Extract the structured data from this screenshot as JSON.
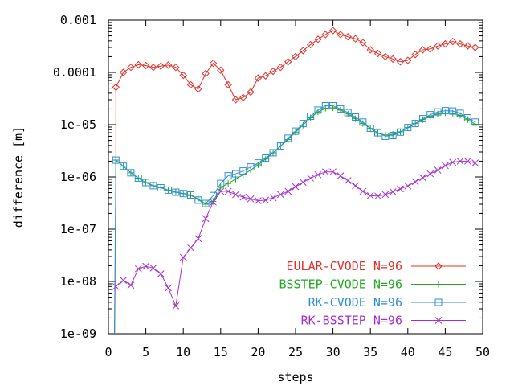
{
  "chart_data": {
    "type": "line",
    "title": "",
    "xlabel": "steps",
    "ylabel": "difference [m]",
    "xlim": [
      0,
      50
    ],
    "ylim": [
      1e-09,
      0.001
    ],
    "yscale": "log",
    "xticks": [
      0,
      5,
      10,
      15,
      20,
      25,
      30,
      35,
      40,
      45,
      50
    ],
    "xtick_labels": [
      "0",
      "5",
      "10",
      "15",
      "20",
      "25",
      "30",
      "35",
      "40",
      "45",
      "50"
    ],
    "yticks": [
      1e-09,
      1e-08,
      1e-07,
      1e-06,
      1e-05,
      0.0001,
      0.001
    ],
    "ytick_labels": [
      "1e-09",
      "1e-08",
      "1e-07",
      "1e-06",
      "1e-05",
      "0.0001",
      "0.001"
    ],
    "grid": false,
    "legend_position": "bottom-right",
    "series": [
      {
        "name": "EULAR-CVODE N=96",
        "color": "#e0302a",
        "marker": "diamond",
        "x": [
          1,
          2,
          3,
          4,
          5,
          6,
          7,
          8,
          9,
          10,
          11,
          12,
          13,
          14,
          15,
          16,
          17,
          18,
          19,
          20,
          21,
          22,
          23,
          24,
          25,
          26,
          27,
          28,
          29,
          30,
          31,
          32,
          33,
          34,
          35,
          36,
          37,
          38,
          39,
          40,
          41,
          42,
          43,
          44,
          45,
          46,
          47,
          48,
          49
        ],
        "y": [
          5.2e-05,
          0.0001,
          0.000125,
          0.00014,
          0.000135,
          0.000125,
          0.000132,
          0.000138,
          0.000125,
          8.8e-05,
          5.8e-05,
          4.8e-05,
          9.5e-05,
          0.00015,
          0.00011,
          5.8e-05,
          3e-05,
          3.3e-05,
          4.2e-05,
          7.8e-05,
          8.6e-05,
          0.000105,
          0.000125,
          0.00016,
          0.0002,
          0.00026,
          0.00034,
          0.00043,
          0.00053,
          0.00063,
          0.00053,
          0.00048,
          0.00044,
          0.00037,
          0.00027,
          0.00023,
          0.0002,
          0.00018,
          0.00016,
          0.00017,
          0.00022,
          0.00027,
          0.00028,
          0.00032,
          0.00035,
          0.00039,
          0.00035,
          0.00032,
          0.0003
        ]
      },
      {
        "name": "BSSTEP-CVODE N=96",
        "color": "#22a822",
        "marker": "plus",
        "x": [
          1,
          2,
          3,
          4,
          5,
          6,
          7,
          8,
          9,
          10,
          11,
          12,
          13,
          14,
          15,
          16,
          17,
          18,
          19,
          20,
          21,
          22,
          23,
          24,
          25,
          26,
          27,
          28,
          29,
          30,
          31,
          32,
          33,
          34,
          35,
          36,
          37,
          38,
          39,
          40,
          41,
          42,
          43,
          44,
          45,
          46,
          47,
          48,
          49
        ],
        "y": [
          2.1e-06,
          1.6e-06,
          1.2e-06,
          9.5e-07,
          7.8e-07,
          6.8e-07,
          6.2e-07,
          5.6e-07,
          5.1e-07,
          4.8e-07,
          4.4e-07,
          3.8e-07,
          3e-07,
          3.4e-07,
          6.3e-07,
          7.5e-07,
          9.1e-07,
          1.1e-06,
          1.35e-06,
          1.7e-06,
          2.2e-06,
          2.9e-06,
          3.9e-06,
          5.2e-06,
          7.2e-06,
          9.8e-06,
          1.35e-05,
          1.75e-05,
          2.05e-05,
          2.1e-05,
          1.9e-05,
          1.6e-05,
          1.3e-05,
          1.05e-05,
          8.5e-06,
          6.8e-06,
          6.3e-06,
          6.5e-06,
          7.3e-06,
          8.8e-06,
          1.05e-05,
          1.25e-05,
          1.45e-05,
          1.6e-05,
          1.68e-05,
          1.65e-05,
          1.5e-05,
          1.25e-05,
          1.02e-05
        ]
      },
      {
        "name": "RK-CVODE N=96",
        "color": "#2f8ed8",
        "marker": "square",
        "x": [
          0.8,
          1,
          2,
          3,
          4,
          5,
          6,
          7,
          8,
          9,
          10,
          11,
          12,
          13,
          14,
          15,
          16,
          17,
          18,
          19,
          20,
          21,
          22,
          23,
          24,
          25,
          26,
          27,
          28,
          29,
          30,
          31,
          32,
          33,
          34,
          35,
          36,
          37,
          38,
          39,
          40,
          41,
          42,
          43,
          44,
          45,
          46,
          47,
          48,
          49
        ],
        "y": [
          1e-09,
          2.1e-06,
          1.6e-06,
          1.2e-06,
          9.5e-07,
          7.8e-07,
          6.8e-07,
          6.2e-07,
          5.6e-07,
          5.1e-07,
          4.8e-07,
          4.5e-07,
          3.6e-07,
          3.1e-07,
          4.4e-07,
          7.5e-07,
          1.05e-06,
          1.15e-06,
          1.3e-06,
          1.55e-06,
          1.85e-06,
          2.3e-06,
          2.9e-06,
          3.9e-06,
          5.5e-06,
          7.5e-06,
          1.05e-05,
          1.45e-05,
          1.9e-05,
          2.3e-05,
          2.3e-05,
          2e-05,
          1.7e-05,
          1.4e-05,
          1.12e-05,
          8.5e-06,
          7e-06,
          6e-06,
          6.2e-06,
          7.2e-06,
          8.8e-06,
          1.05e-05,
          1.3e-05,
          1.55e-05,
          1.75e-05,
          1.85e-05,
          1.82e-05,
          1.65e-05,
          1.35e-05,
          1.12e-05
        ]
      },
      {
        "name": "RK-BSSTEP N=96",
        "color": "#a42fd0",
        "marker": "x",
        "x": [
          1,
          2,
          3,
          4,
          5,
          6,
          7,
          8,
          9,
          10,
          11,
          12,
          13,
          14,
          15,
          16,
          17,
          18,
          19,
          20,
          21,
          22,
          23,
          24,
          25,
          26,
          27,
          28,
          29,
          30,
          31,
          32,
          33,
          34,
          35,
          36,
          37,
          38,
          39,
          40,
          41,
          42,
          43,
          44,
          45,
          46,
          47,
          48,
          49
        ],
        "y": [
          8e-09,
          1.05e-08,
          8.5e-09,
          1.75e-08,
          1.95e-08,
          1.8e-08,
          1.4e-08,
          7.5e-09,
          3.4e-09,
          2.9e-08,
          4.4e-08,
          6.6e-08,
          1.6e-07,
          3.3e-07,
          5.3e-07,
          5.3e-07,
          4.6e-07,
          4.1e-07,
          3.8e-07,
          3.5e-07,
          3.6e-07,
          4e-07,
          4.6e-07,
          5.3e-07,
          6.5e-07,
          7.9e-07,
          9.5e-07,
          1.1e-06,
          1.25e-06,
          1.25e-06,
          1.05e-06,
          8.5e-07,
          6.8e-07,
          5.3e-07,
          4.4e-07,
          4.3e-07,
          4.6e-07,
          5.2e-07,
          5.9e-07,
          6.7e-07,
          8.1e-07,
          9.7e-07,
          1.15e-06,
          1.35e-06,
          1.65e-06,
          1.9e-06,
          2e-06,
          2e-06,
          1.85e-06
        ]
      }
    ]
  }
}
